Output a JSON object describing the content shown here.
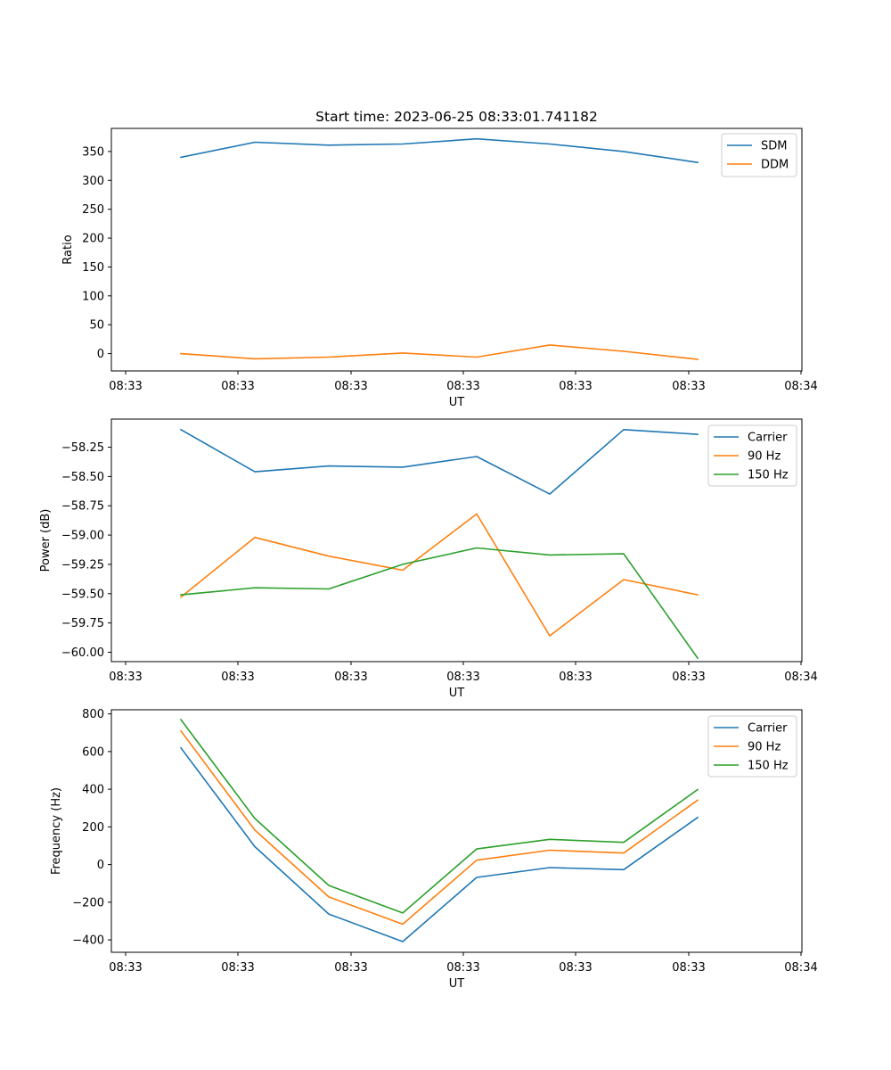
{
  "chart_data": [
    {
      "type": "line",
      "title": "Start time: 2023-06-25 08:33:01.741182",
      "xlabel": "UT",
      "ylabel": "Ratio",
      "xticks": [
        "08:33",
        "08:33",
        "08:33",
        "08:33",
        "08:33",
        "08:33",
        "08:34"
      ],
      "yticks": [
        "0",
        "50",
        "100",
        "150",
        "200",
        "250",
        "300",
        "350"
      ],
      "ylim": [
        -30,
        390
      ],
      "legend_position": "top-right",
      "grid": false,
      "series": [
        {
          "name": "SDM",
          "color": "#1f77b4",
          "values": [
            340,
            366,
            361,
            363,
            372,
            363,
            350,
            331
          ]
        },
        {
          "name": "DDM",
          "color": "#ff7f0e",
          "values": [
            0,
            -9,
            -6,
            1,
            -6,
            15,
            4,
            -10
          ]
        }
      ]
    },
    {
      "type": "line",
      "title": "",
      "xlabel": "UT",
      "ylabel": "Power (dB)",
      "xticks": [
        "08:33",
        "08:33",
        "08:33",
        "08:33",
        "08:33",
        "08:33",
        "08:34"
      ],
      "yticks": [
        "−58.25",
        "−58.50",
        "−58.75",
        "−59.00",
        "−59.25",
        "−59.50",
        "−59.75",
        "−60.00"
      ],
      "ylim": [
        -60.08,
        -58.01
      ],
      "legend_position": "top-right",
      "grid": false,
      "series": [
        {
          "name": "Carrier",
          "color": "#1f77b4",
          "values": [
            -58.1,
            -58.46,
            -58.41,
            -58.42,
            -58.33,
            -58.65,
            -58.1,
            -58.14
          ]
        },
        {
          "name": "90 Hz",
          "color": "#ff7f0e",
          "values": [
            -59.53,
            -59.02,
            -59.18,
            -59.3,
            -58.82,
            -59.86,
            -59.38,
            -59.51
          ]
        },
        {
          "name": "150 Hz",
          "color": "#2ca02c",
          "values": [
            -59.51,
            -59.45,
            -59.46,
            -59.25,
            -59.11,
            -59.17,
            -59.16,
            -60.05
          ]
        }
      ]
    },
    {
      "type": "line",
      "title": "",
      "xlabel": "UT",
      "ylabel": "Frequency (Hz)",
      "xticks": [
        "08:33",
        "08:33",
        "08:33",
        "08:33",
        "08:33",
        "08:33",
        "08:34"
      ],
      "yticks": [
        "−400",
        "−200",
        "0",
        "200",
        "400",
        "600",
        "800"
      ],
      "ylim": [
        -466,
        822
      ],
      "legend_position": "top-right",
      "grid": false,
      "series": [
        {
          "name": "Carrier",
          "color": "#1f77b4",
          "values": [
            620,
            95,
            -263,
            -409,
            -68,
            -16,
            -27,
            250
          ]
        },
        {
          "name": "90 Hz",
          "color": "#ff7f0e",
          "values": [
            710,
            183,
            -172,
            -317,
            23,
            76,
            61,
            342
          ]
        },
        {
          "name": "150 Hz",
          "color": "#2ca02c",
          "values": [
            770,
            245,
            -111,
            -257,
            83,
            134,
            118,
            398
          ]
        }
      ]
    }
  ]
}
